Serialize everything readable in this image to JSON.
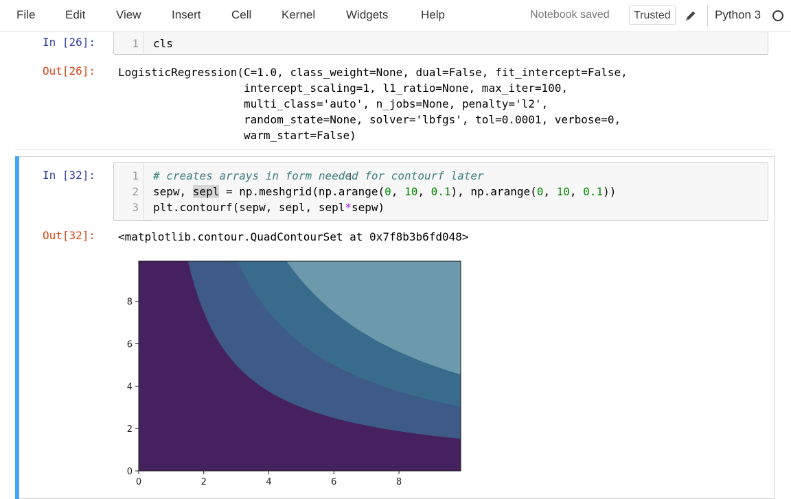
{
  "menubar": {
    "items": [
      "File",
      "Edit",
      "View",
      "Insert",
      "Cell",
      "Kernel",
      "Widgets",
      "Help"
    ],
    "notebook_status": "Notebook saved",
    "trusted_label": "Trusted",
    "edit_icon": "pencil-icon",
    "kernel_name": "Python 3",
    "kernel_status_icon": "kernel-idle-circle-icon"
  },
  "cells": {
    "cell26": {
      "in_prompt": "In [26]:",
      "lines": [
        {
          "num": "1",
          "code": "cls"
        }
      ],
      "out_prompt": "Out[26]:",
      "output_lines": [
        "LogisticRegression(C=1.0, class_weight=None, dual=False, fit_intercept=False,",
        "                   intercept_scaling=1, l1_ratio=None, max_iter=100,",
        "                   multi_class='auto', n_jobs=None, penalty='l2',",
        "                   random_state=None, solver='lbfgs', tol=0.0001, verbose=0,",
        "                   warm_start=False)"
      ]
    },
    "cell32": {
      "in_prompt": "In [32]:",
      "line_numbers": [
        "1",
        "2",
        "3"
      ],
      "line1_comment": "# creates arrays in form needed for contourf later",
      "line2": {
        "a": "sepw, ",
        "highlight": "sepl",
        "b": " = np.meshgrid(np.arange(",
        "n1": "0",
        "c1": ", ",
        "n2": "10",
        "c2": ", ",
        "n3": "0.1",
        "d": "), np.arange(",
        "n4": "0",
        "c3": ", ",
        "n5": "10",
        "c4": ", ",
        "n6": "0.1",
        "e": "))"
      },
      "line3": {
        "a": "plt.contourf(sepw, sepl, sepl",
        "op": "*",
        "b": "sepw)"
      },
      "out_prompt": "Out[32]:",
      "output_text": "<matplotlib.contour.QuadContourSet at 0x7f8b3b6fd048>"
    }
  },
  "chart_data": {
    "type": "contourf",
    "title": "",
    "xlabel": "",
    "ylabel": "",
    "xlim": [
      0,
      9.9
    ],
    "ylim": [
      0,
      9.9
    ],
    "x_ticks": [
      "0",
      "2",
      "4",
      "6",
      "8"
    ],
    "y_ticks": [
      "0",
      "2",
      "4",
      "6",
      "8"
    ],
    "function": "sepl*sepw",
    "levels": [
      0,
      15,
      30,
      45,
      60,
      75,
      90,
      105
    ],
    "level_colors": [
      "#440154",
      "#46327e",
      "#365c8d",
      "#277f8e",
      "#1fa187",
      "#4ac16d",
      "#a0da39",
      "#fde725"
    ],
    "visible_band_colors": [
      "#45225f",
      "#3d5b86",
      "#396b8c",
      "#6c9aac"
    ],
    "grid": false,
    "legend": "none"
  }
}
